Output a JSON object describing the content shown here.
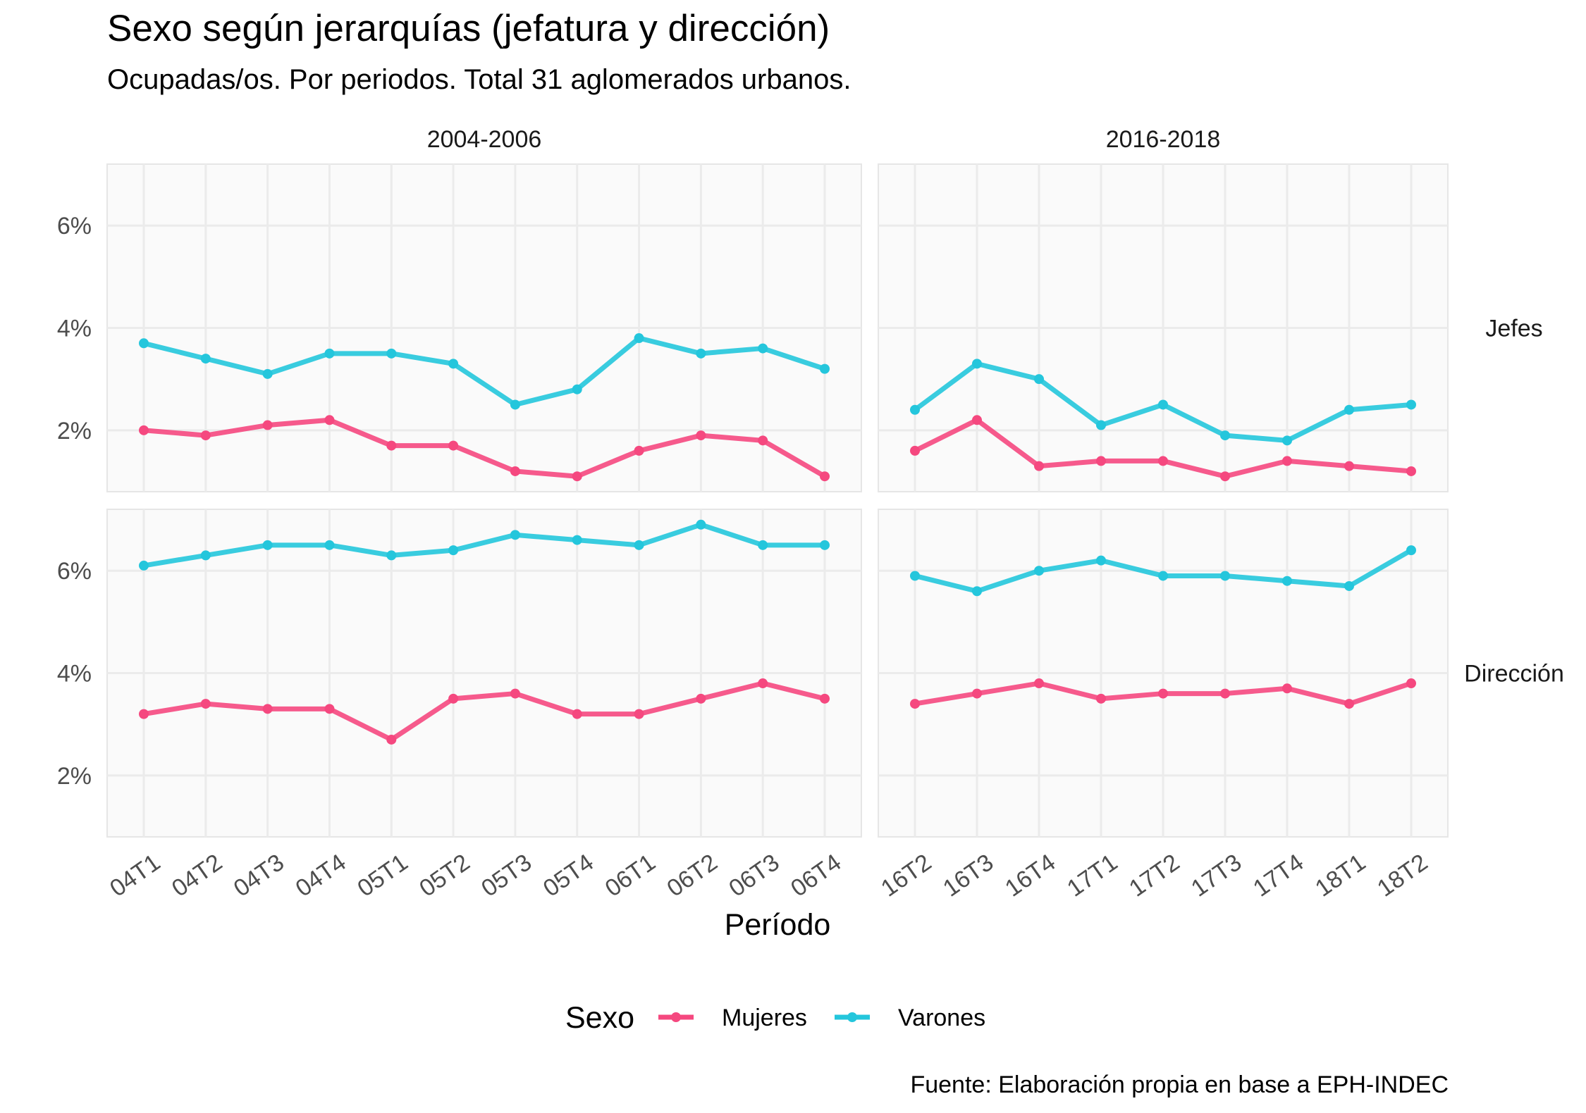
{
  "chart_data": {
    "type": "line",
    "title": "Sexo según jerarquías (jefatura y dirección)",
    "subtitle": "Ocupadas/os. Por periodos. Total 31 aglomerados urbanos.",
    "xlabel": "Período",
    "ylabel": "",
    "caption": "Fuente: Elaboración propia en base a EPH-INDEC",
    "y_ticks": [
      "2%",
      "4%",
      "6%"
    ],
    "y_tick_values": [
      2,
      4,
      6
    ],
    "ylim": [
      0.8,
      7.2
    ],
    "grid": true,
    "legend": {
      "title": "Sexo",
      "position": "bottom",
      "entries": [
        {
          "label": "Mujeres",
          "color": "#F5487F"
        },
        {
          "label": "Varones",
          "color": "#24C6DC"
        }
      ]
    },
    "columns": [
      {
        "label": "2004-2006",
        "categories": [
          "04T1",
          "04T2",
          "04T3",
          "04T4",
          "05T1",
          "05T2",
          "05T3",
          "05T4",
          "06T1",
          "06T2",
          "06T3",
          "06T4"
        ]
      },
      {
        "label": "2016-2018",
        "categories": [
          "16T2",
          "16T3",
          "16T4",
          "17T1",
          "17T2",
          "17T3",
          "17T4",
          "18T1",
          "18T2"
        ]
      }
    ],
    "rows": [
      {
        "label": "Jefes",
        "series": [
          {
            "name": "Mujeres",
            "values": [
              [
                2.0,
                1.9,
                2.1,
                2.2,
                1.7,
                1.7,
                1.2,
                1.1,
                1.6,
                1.9,
                1.8,
                1.1
              ],
              [
                1.6,
                2.2,
                1.3,
                1.4,
                1.4,
                1.1,
                1.4,
                1.3,
                1.2
              ]
            ]
          },
          {
            "name": "Varones",
            "values": [
              [
                3.7,
                3.4,
                3.1,
                3.5,
                3.5,
                3.3,
                2.5,
                2.8,
                3.8,
                3.5,
                3.6,
                3.2
              ],
              [
                2.4,
                3.3,
                3.0,
                2.1,
                2.5,
                1.9,
                1.8,
                2.4,
                2.5
              ]
            ]
          }
        ]
      },
      {
        "label": "Dirección",
        "series": [
          {
            "name": "Mujeres",
            "values": [
              [
                3.2,
                3.4,
                3.3,
                3.3,
                2.7,
                3.5,
                3.6,
                3.2,
                3.2,
                3.5,
                3.8,
                3.5
              ],
              [
                3.4,
                3.6,
                3.8,
                3.5,
                3.6,
                3.6,
                3.7,
                3.4,
                3.8
              ]
            ]
          },
          {
            "name": "Varones",
            "values": [
              [
                6.1,
                6.3,
                6.5,
                6.5,
                6.3,
                6.4,
                6.7,
                6.6,
                6.5,
                6.9,
                6.5,
                6.5
              ],
              [
                5.9,
                5.6,
                6.0,
                6.2,
                5.9,
                5.9,
                5.8,
                5.7,
                6.4
              ]
            ]
          }
        ]
      }
    ]
  }
}
